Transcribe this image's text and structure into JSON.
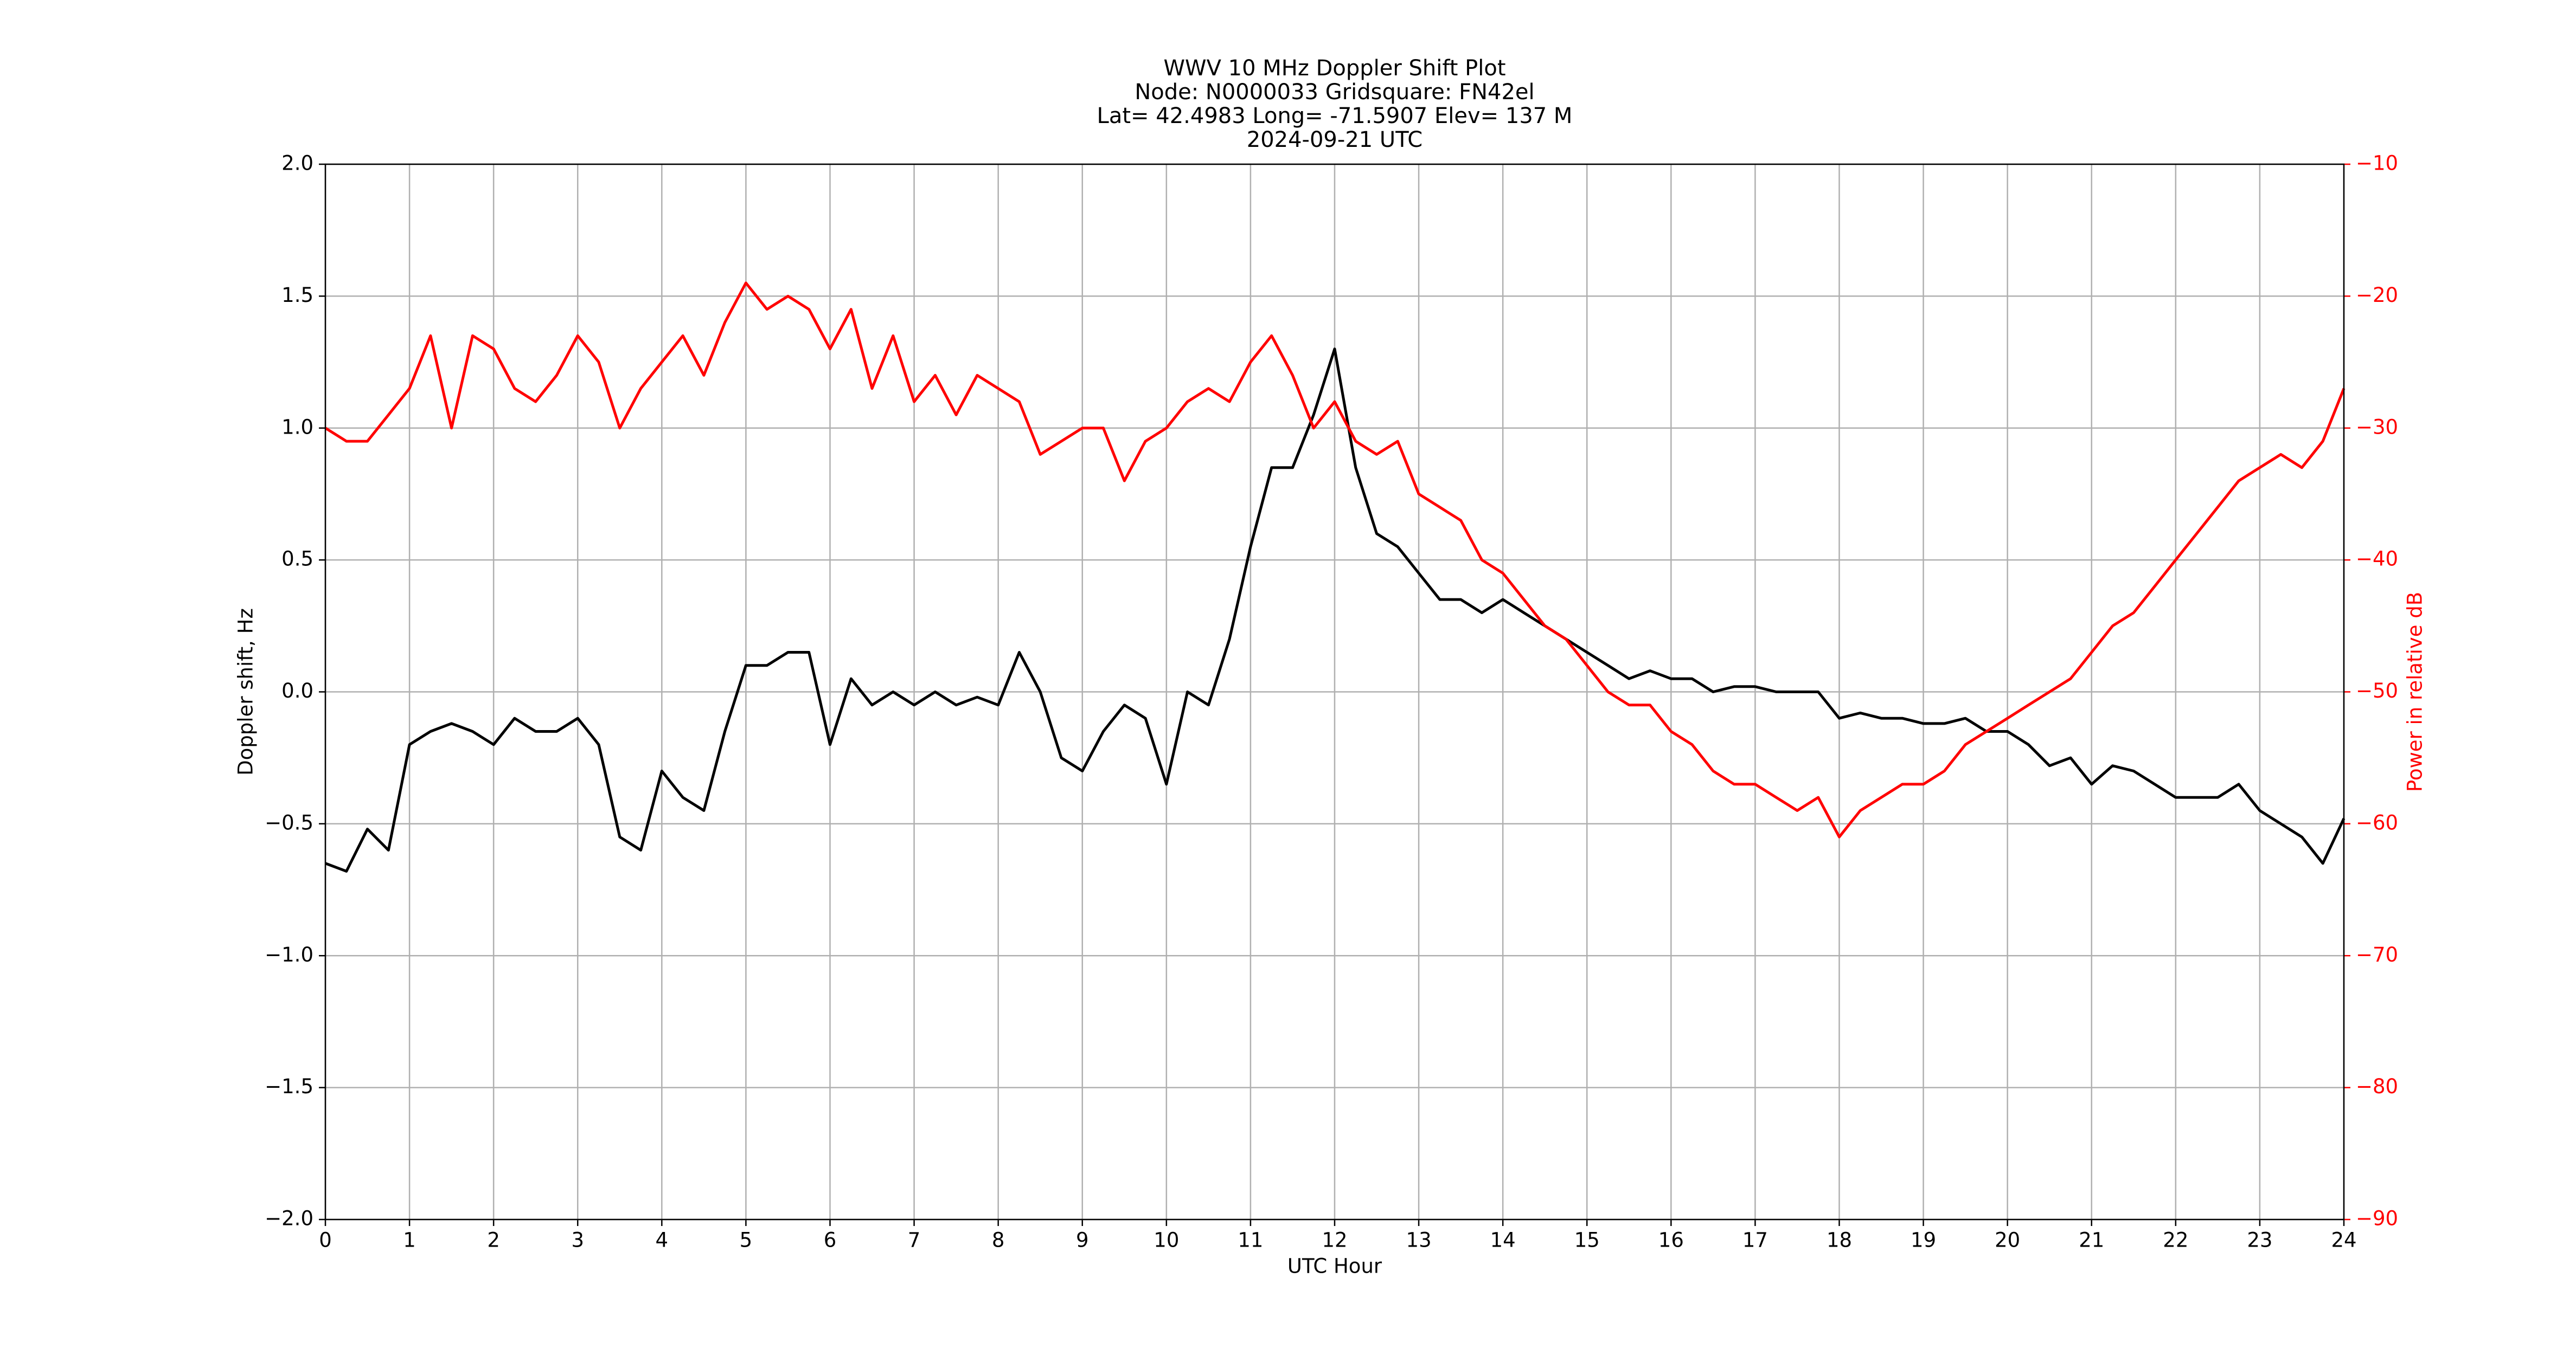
{
  "chart_data": {
    "type": "line",
    "title": [
      "WWV 10 MHz Doppler Shift Plot",
      "Node:  N0000033     Gridsquare:  FN42el",
      "Lat= 42.4983    Long= -71.5907    Elev= 137 M",
      "2024-09-21  UTC"
    ],
    "xlabel": "UTC Hour",
    "ylabel": "Doppler shift, Hz",
    "y2label": "Power in relative dB",
    "xlim": [
      0,
      24
    ],
    "xticks": [
      0,
      1,
      2,
      3,
      4,
      5,
      6,
      7,
      8,
      9,
      10,
      11,
      12,
      13,
      14,
      15,
      16,
      17,
      18,
      19,
      20,
      21,
      22,
      23,
      24
    ],
    "ylim": [
      -2.0,
      2.0
    ],
    "yticks": [
      {
        "value": -2.0,
        "label": "−2.0"
      },
      {
        "value": -1.5,
        "label": "−1.5"
      },
      {
        "value": -1.0,
        "label": "−1.0"
      },
      {
        "value": -0.5,
        "label": "−0.5"
      },
      {
        "value": 0.0,
        "label": "0.0"
      },
      {
        "value": 0.5,
        "label": "0.5"
      },
      {
        "value": 1.0,
        "label": "1.0"
      },
      {
        "value": 1.5,
        "label": "1.5"
      },
      {
        "value": 2.0,
        "label": "2.0"
      }
    ],
    "y2lim": [
      -90,
      -10
    ],
    "y2ticks": [
      {
        "value": -90,
        "label": "−90"
      },
      {
        "value": -80,
        "label": "−80"
      },
      {
        "value": -70,
        "label": "−70"
      },
      {
        "value": -60,
        "label": "−60"
      },
      {
        "value": -50,
        "label": "−50"
      },
      {
        "value": -40,
        "label": "−40"
      },
      {
        "value": -30,
        "label": "−30"
      },
      {
        "value": -20,
        "label": "−20"
      },
      {
        "value": -10,
        "label": "−10"
      }
    ],
    "grid": true,
    "y2color": "#ff0000",
    "x": [
      0,
      0.25,
      0.5,
      0.75,
      1,
      1.25,
      1.5,
      1.75,
      2,
      2.25,
      2.5,
      2.75,
      3,
      3.25,
      3.5,
      3.75,
      4,
      4.25,
      4.5,
      4.75,
      5,
      5.25,
      5.5,
      5.75,
      6,
      6.25,
      6.5,
      6.75,
      7,
      7.25,
      7.5,
      7.75,
      8,
      8.25,
      8.5,
      8.75,
      9,
      9.25,
      9.5,
      9.75,
      10,
      10.25,
      10.5,
      10.75,
      11,
      11.25,
      11.5,
      11.75,
      12,
      12.25,
      12.5,
      12.75,
      13,
      13.25,
      13.5,
      13.75,
      14,
      14.25,
      14.5,
      14.75,
      15,
      15.25,
      15.5,
      15.75,
      16,
      16.25,
      16.5,
      16.75,
      17,
      17.25,
      17.5,
      17.75,
      18,
      18.25,
      18.5,
      18.75,
      19,
      19.25,
      19.5,
      19.75,
      20,
      20.25,
      20.5,
      20.75,
      21,
      21.25,
      21.5,
      21.75,
      22,
      22.25,
      22.5,
      22.75,
      23,
      23.25,
      23.5,
      23.75,
      24
    ],
    "series": [
      {
        "color": "#000000",
        "values": [
          -0.65,
          -0.68,
          -0.52,
          -0.6,
          -0.2,
          -0.15,
          -0.12,
          -0.15,
          -0.2,
          -0.1,
          -0.15,
          -0.15,
          -0.1,
          -0.2,
          -0.55,
          -0.6,
          -0.3,
          -0.4,
          -0.45,
          -0.15,
          0.1,
          0.1,
          0.15,
          0.15,
          -0.2,
          0.05,
          -0.05,
          0.0,
          -0.05,
          0.0,
          -0.05,
          -0.02,
          -0.05,
          0.15,
          0.0,
          -0.25,
          -0.3,
          -0.15,
          -0.05,
          -0.1,
          -0.35,
          0.0,
          -0.05,
          0.2,
          0.55,
          0.85,
          0.85,
          1.05,
          1.3,
          0.85,
          0.6,
          0.55,
          0.45,
          0.35,
          0.35,
          0.3,
          0.35,
          0.3,
          0.25,
          0.2,
          0.15,
          0.1,
          0.05,
          0.08,
          0.05,
          0.05,
          0.0,
          0.02,
          0.02,
          0.0,
          0.0,
          0.0,
          -0.1,
          -0.08,
          -0.1,
          -0.1,
          -0.12,
          -0.12,
          -0.1,
          -0.15,
          -0.15,
          -0.2,
          -0.28,
          -0.25,
          -0.35,
          -0.28,
          -0.3,
          -0.35,
          -0.4,
          -0.4,
          -0.4,
          -0.35,
          -0.45,
          -0.5,
          -0.55,
          -0.65,
          -0.48
        ]
      },
      {
        "color": "#ff0000",
        "axis": "y2",
        "values": [
          -30,
          -31,
          -31,
          -29,
          -27,
          -23,
          -30,
          -23,
          -24,
          -27,
          -28,
          -26,
          -23,
          -25,
          -30,
          -27,
          -25,
          -23,
          -26,
          -22,
          -19,
          -21,
          -20,
          -21,
          -24,
          -21,
          -27,
          -23,
          -28,
          -26,
          -29,
          -26,
          -27,
          -28,
          -32,
          -31,
          -30,
          -30,
          -34,
          -31,
          -30,
          -28,
          -27,
          -28,
          -25,
          -23,
          -26,
          -30,
          -28,
          -31,
          -32,
          -31,
          -35,
          -36,
          -37,
          -40,
          -41,
          -43,
          -45,
          -46,
          -48,
          -50,
          -51,
          -51,
          -53,
          -54,
          -56,
          -57,
          -57,
          -58,
          -59,
          -58,
          -61,
          -59,
          -58,
          -57,
          -57,
          -56,
          -54,
          -53,
          -52,
          -51,
          -50,
          -49,
          -47,
          -45,
          -44,
          -42,
          -40,
          -38,
          -36,
          -34,
          -33,
          -32,
          -33,
          -31,
          -27
        ]
      }
    ]
  }
}
